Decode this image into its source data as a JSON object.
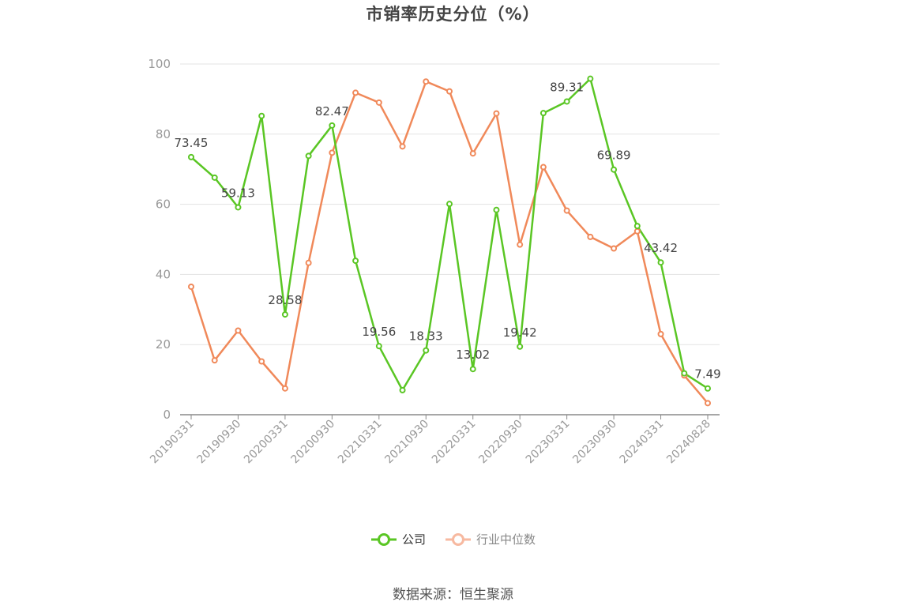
{
  "chart_data": {
    "type": "line",
    "title": "市销率历史分位（%）",
    "ylim": [
      0,
      100
    ],
    "yticks": [
      0,
      20,
      40,
      60,
      80,
      100
    ],
    "grid": true,
    "legend_position": "bottom",
    "x_tick_labels": [
      "20190331",
      "20190930",
      "20200331",
      "20200930",
      "20210331",
      "20210930",
      "20220331",
      "20220930",
      "20230331",
      "20230930",
      "20240331",
      "20240828"
    ],
    "x": [
      "20190331",
      "20190630",
      "20190930",
      "20191231",
      "20200331",
      "20200630",
      "20200930",
      "20201231",
      "20210331",
      "20210630",
      "20210930",
      "20211231",
      "20220331",
      "20220630",
      "20220930",
      "20221231",
      "20230331",
      "20230630",
      "20230930",
      "20231231",
      "20240331",
      "20240630",
      "20240828"
    ],
    "series": [
      {
        "name": "公司",
        "color": "#5ac624",
        "values": [
          73.45,
          67.6,
          59.13,
          85.2,
          28.58,
          73.8,
          82.47,
          43.9,
          19.56,
          7.0,
          18.33,
          60.1,
          13.02,
          58.4,
          19.42,
          86.0,
          89.31,
          95.8,
          69.89,
          53.8,
          43.42,
          11.8,
          7.49
        ],
        "labels": {
          "0": "73.45",
          "2": "59.13",
          "4": "28.58",
          "6": "82.47",
          "8": "19.56",
          "10": "18.33",
          "12": "13.02",
          "14": "19.42",
          "16": "89.31",
          "18": "69.89",
          "20": "43.42",
          "22": "7.49"
        }
      },
      {
        "name": "行业中位数",
        "color": "#f0895a",
        "values": [
          36.5,
          15.5,
          24.0,
          15.2,
          7.5,
          43.3,
          74.7,
          91.8,
          89.0,
          76.5,
          95.0,
          92.2,
          74.5,
          85.9,
          48.5,
          70.6,
          58.2,
          50.7,
          47.4,
          52.3,
          23.0,
          11.2,
          3.3
        ]
      }
    ]
  },
  "legend": {
    "company_label": "公司",
    "industry_label": "行业中位数",
    "industry_legend_color": "#f7b9a0"
  },
  "source_text": "数据来源：恒生聚源"
}
